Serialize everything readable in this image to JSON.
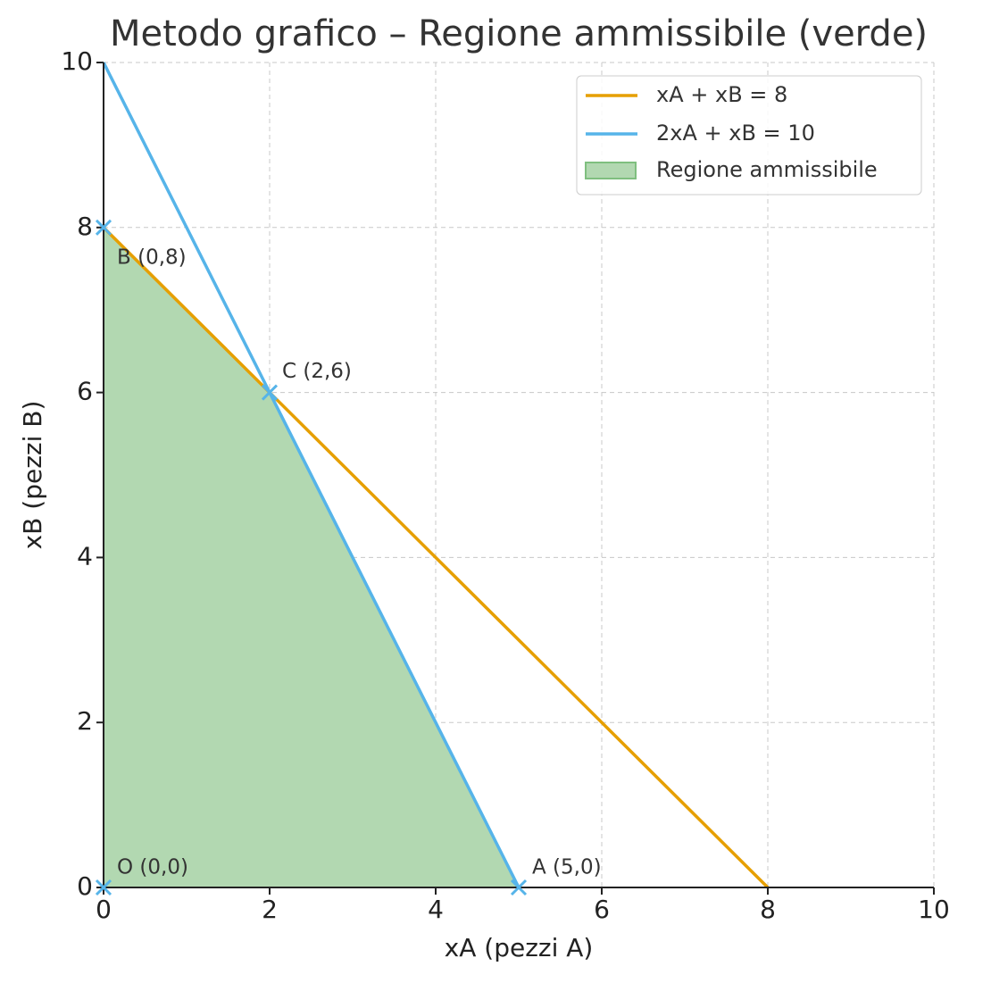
{
  "chart_data": {
    "type": "line",
    "title": "Metodo grafico – Regione ammissibile (verde)",
    "x_label": "xA (pezzi A)",
    "y_label": "xB (pezzi B)",
    "xlim": [
      0,
      10
    ],
    "ylim": [
      0,
      10
    ],
    "xticks": [
      0,
      2,
      4,
      6,
      8,
      10
    ],
    "yticks": [
      0,
      2,
      4,
      6,
      8,
      10
    ],
    "grid": true,
    "legend": "upper right",
    "series": [
      {
        "name": "xA + xB = 8",
        "color": "#e69f00",
        "x": [
          0,
          8
        ],
        "values": [
          8,
          0
        ]
      },
      {
        "name": "2xA + xB = 10",
        "color": "#56b4e9",
        "x": [
          0,
          5
        ],
        "values": [
          10,
          0
        ]
      }
    ],
    "region": {
      "name": "Regione ammissibile",
      "color": "#b2d8b1",
      "x": [
        0,
        5,
        2,
        0
      ],
      "values": [
        0,
        0,
        6,
        8
      ]
    },
    "points": {
      "color": "#56b4e9",
      "x": [
        0,
        5,
        2,
        0
      ],
      "values": [
        0,
        0,
        6,
        8
      ],
      "labels": [
        "O (0,0)",
        "A (5,0)",
        "C (2,6)",
        "B (0,8)"
      ]
    }
  }
}
